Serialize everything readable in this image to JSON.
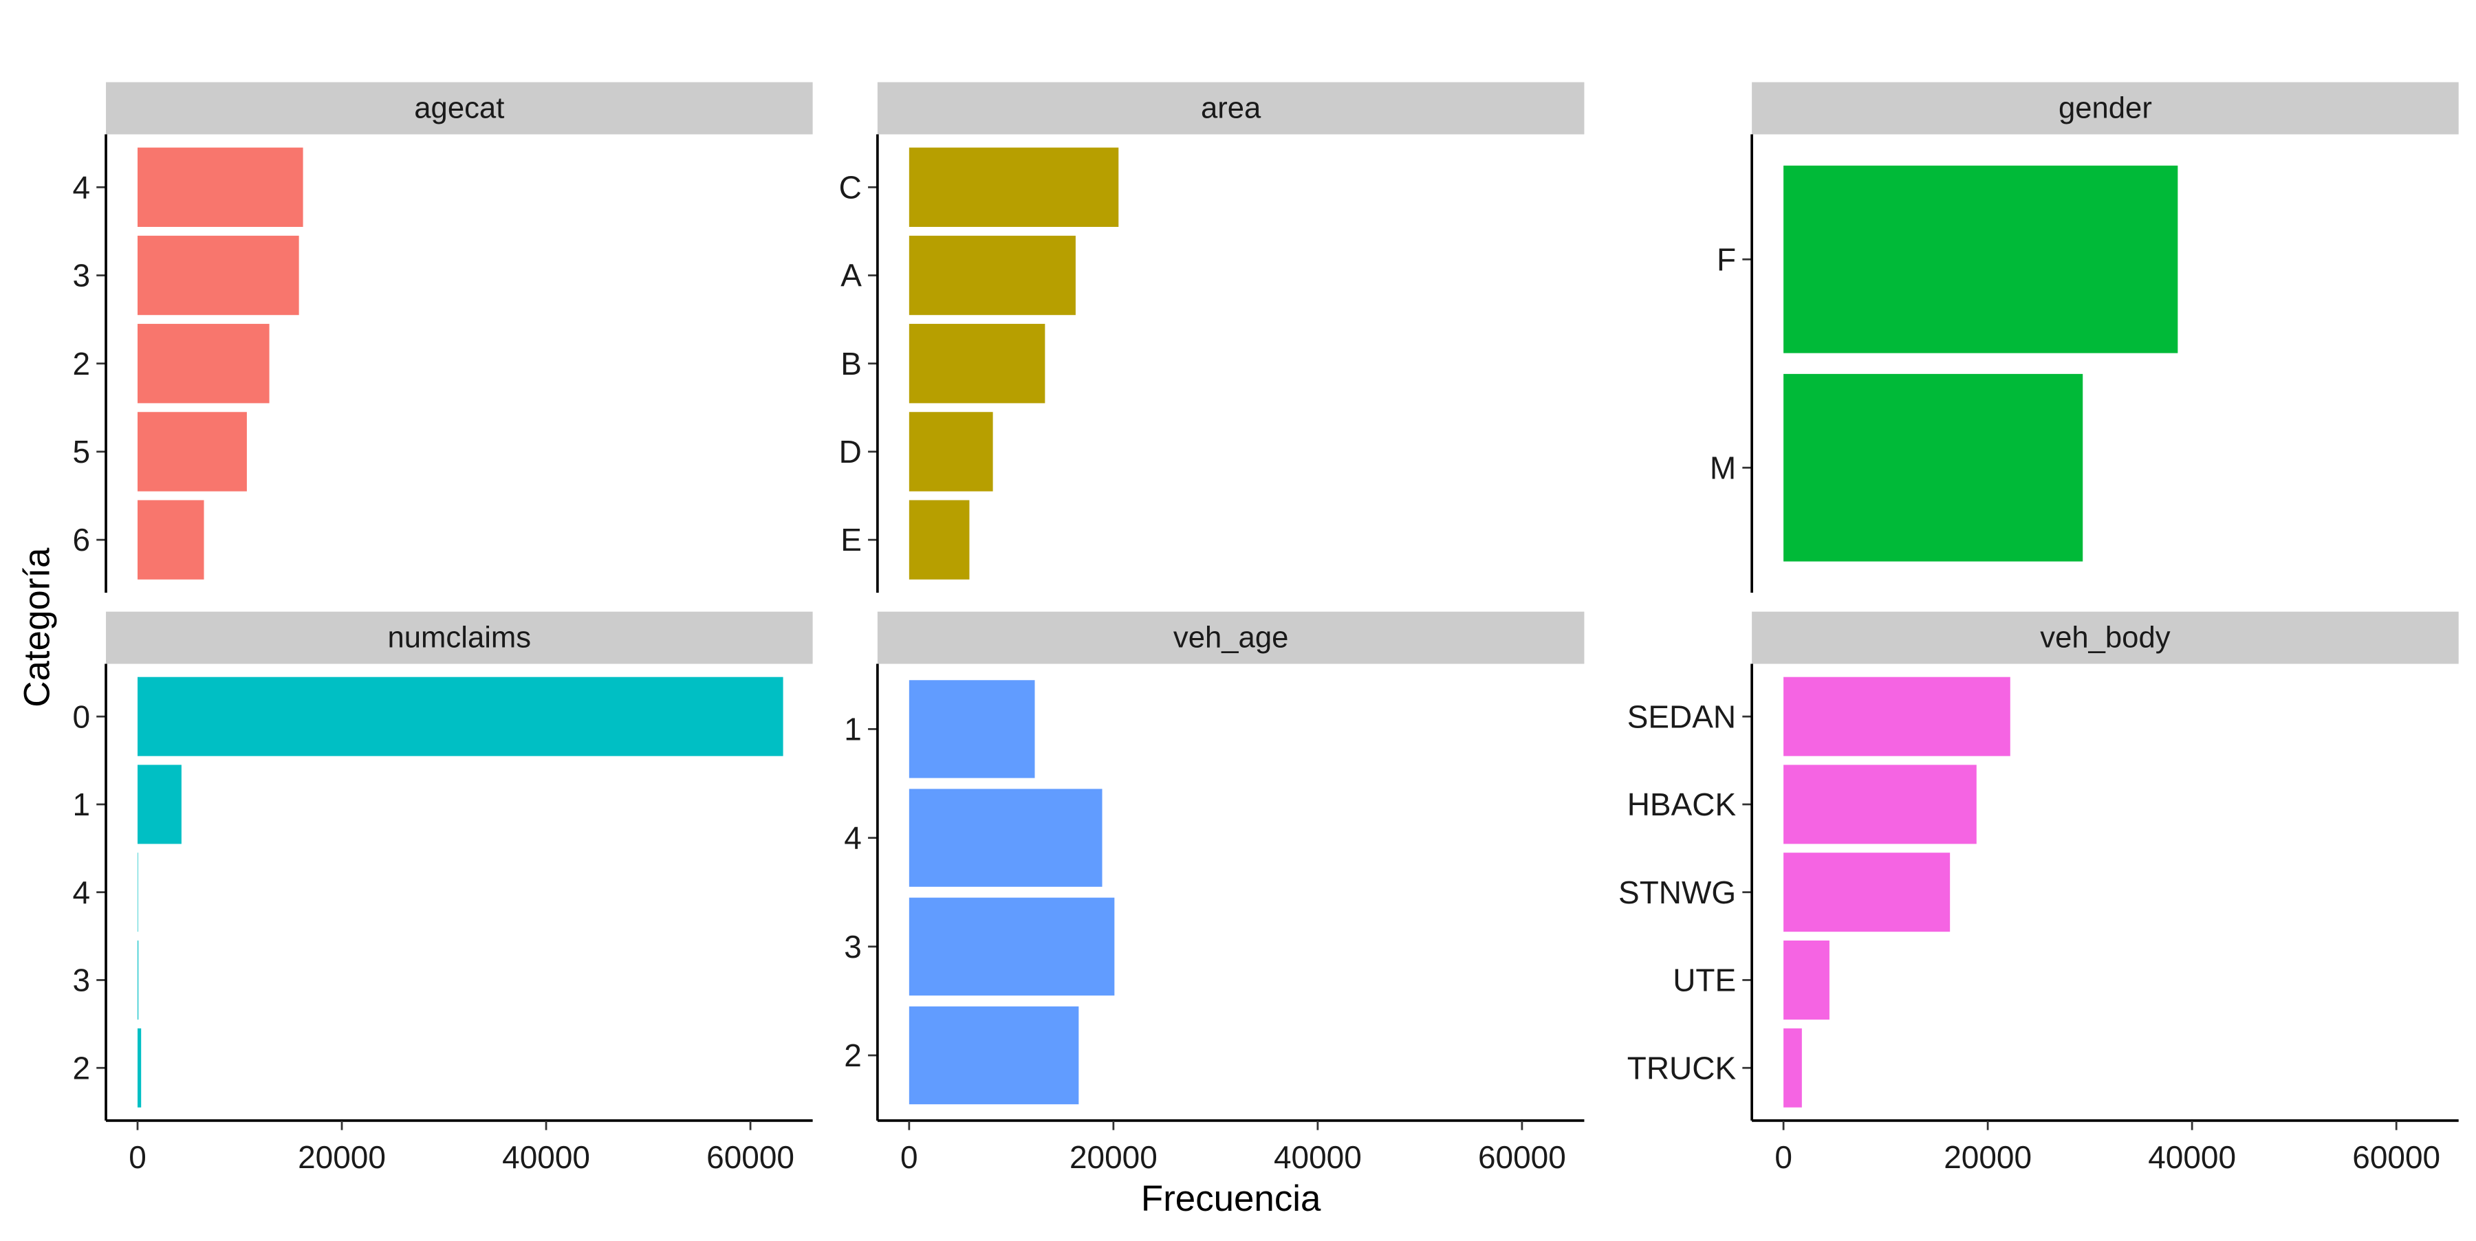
{
  "chart_data": {
    "type": "bar",
    "orientation": "horizontal",
    "xlabel": "Frecuencia",
    "ylabel": "Categoría",
    "xlim": [
      0,
      66000
    ],
    "x_ticks": [
      0,
      20000,
      40000,
      60000
    ],
    "grid": false,
    "legend": "none",
    "panels": [
      {
        "name": "agecat",
        "color": "#F8766D",
        "categories": [
          "4",
          "3",
          "2",
          "5",
          "6"
        ],
        "values": [
          16200,
          15800,
          12900,
          10700,
          6500
        ]
      },
      {
        "name": "area",
        "color": "#B79F00",
        "categories": [
          "C",
          "A",
          "B",
          "D",
          "E"
        ],
        "values": [
          20500,
          16300,
          13300,
          8200,
          5900
        ]
      },
      {
        "name": "gender",
        "color": "#00BA38",
        "categories": [
          "F",
          "M"
        ],
        "values": [
          38600,
          29300
        ]
      },
      {
        "name": "numclaims",
        "color": "#00BFC4",
        "categories": [
          "0",
          "1",
          "4",
          "3",
          "2"
        ],
        "values": [
          63200,
          4300,
          20,
          80,
          350
        ]
      },
      {
        "name": "veh_age",
        "color": "#619CFF",
        "categories": [
          "1",
          "4",
          "3",
          "2"
        ],
        "values": [
          12300,
          18900,
          20100,
          16600
        ]
      },
      {
        "name": "veh_body",
        "color": "#F564E3",
        "categories": [
          "SEDAN",
          "HBACK",
          "STNWG",
          "UTE",
          "TRUCK"
        ],
        "values": [
          22200,
          18900,
          16300,
          4500,
          1800
        ]
      }
    ]
  }
}
